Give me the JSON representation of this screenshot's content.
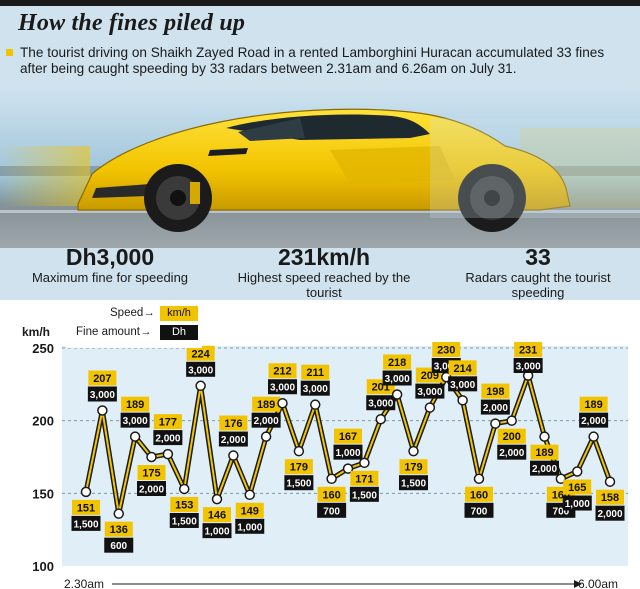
{
  "title": "How the fines piled up",
  "intro": "The tourist driving on Shaikh Zayed Road in a rented Lamborghini Huracan accumulated 33 fines after being caught speeding by 33 radars between 2.31am and 6.26am on July 31.",
  "stats": [
    {
      "value": "Dh3,000",
      "label": "Maximum fine for speeding"
    },
    {
      "value": "231km/h",
      "label": "Highest speed reached by the tourist"
    },
    {
      "value": "33",
      "label": "Radars caught the tourist speeding"
    }
  ],
  "legend": {
    "speed_label": "Speed",
    "speed_unit": "km/h",
    "fine_label": "Fine amount",
    "fine_unit": "Dh"
  },
  "colors": {
    "accent": "#f2c400",
    "dark": "#111111",
    "line": "#1a1a1a"
  },
  "chart_data": {
    "type": "line",
    "title": "",
    "ylabel": "km/h",
    "ylim": [
      100,
      250
    ],
    "yticks": [
      100,
      150,
      200,
      250
    ],
    "x_start_label": "2.30am",
    "x_end_label": "6.00am",
    "grid": "dashed horizontal at 150, 200, 250",
    "series": [
      {
        "name": "Speed",
        "unit": "km/h",
        "values": [
          151,
          207,
          136,
          189,
          175,
          177,
          153,
          224,
          146,
          176,
          149,
          189,
          212,
          179,
          211,
          160,
          167,
          171,
          201,
          218,
          179,
          209,
          230,
          214,
          160,
          198,
          200,
          231,
          189,
          160,
          165,
          189,
          158
        ]
      },
      {
        "name": "Fine amount",
        "unit": "Dh",
        "values": [
          "1,500",
          "3,000",
          "600",
          "3,000",
          "2,000",
          "2,000",
          "1,500",
          "3,000",
          "1,000",
          "2,000",
          "1,000",
          "2,000",
          "3,000",
          "1,500",
          "3,000",
          "700",
          "1,000",
          "1,500",
          "3,000",
          "3,000",
          "1,500",
          "3,000",
          "3,000",
          "3,000",
          "700",
          "2,000",
          "2,000",
          "3,000",
          "2,000",
          "700",
          "1,000",
          "2,000",
          "2,000"
        ]
      }
    ]
  }
}
